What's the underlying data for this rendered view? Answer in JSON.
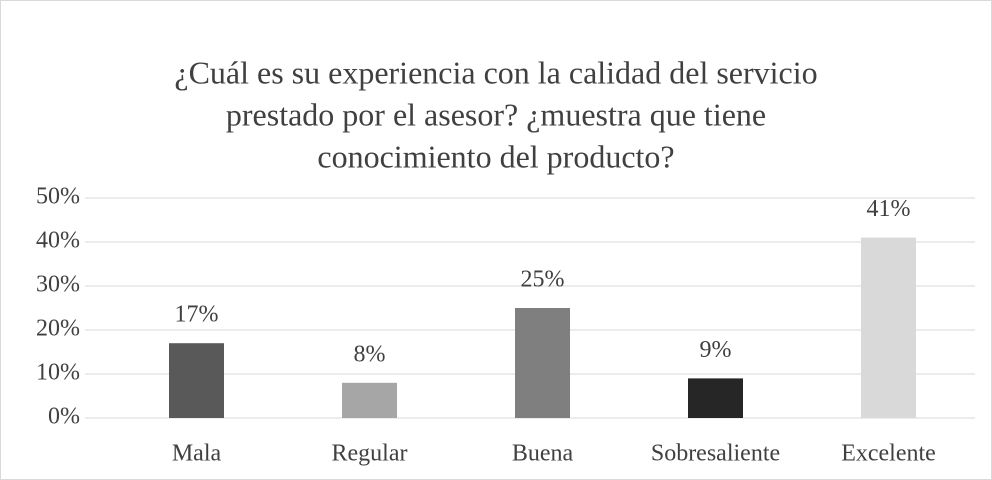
{
  "chart_data": {
    "type": "bar",
    "title": [
      "¿Cuál es su experiencia con la calidad del servicio",
      "prestado por el asesor? ¿muestra que tiene",
      "conocimiento del producto?"
    ],
    "categories": [
      "Mala",
      "Regular",
      "Buena",
      "Sobresaliente",
      "Excelente"
    ],
    "values": [
      17,
      8,
      25,
      9,
      41
    ],
    "value_labels": [
      "17%",
      "8%",
      "25%",
      "9%",
      "41%"
    ],
    "colors": [
      "#595959",
      "#a6a6a6",
      "#7f7f7f",
      "#262626",
      "#d9d9d9"
    ],
    "ylim": [
      0,
      50
    ],
    "yticks": [
      {
        "value": 0,
        "label": "0%"
      },
      {
        "value": 10,
        "label": "10%"
      },
      {
        "value": 20,
        "label": "20%"
      },
      {
        "value": 30,
        "label": "30%"
      },
      {
        "value": 40,
        "label": "40%"
      },
      {
        "value": 50,
        "label": "50%"
      }
    ],
    "grid": true
  }
}
